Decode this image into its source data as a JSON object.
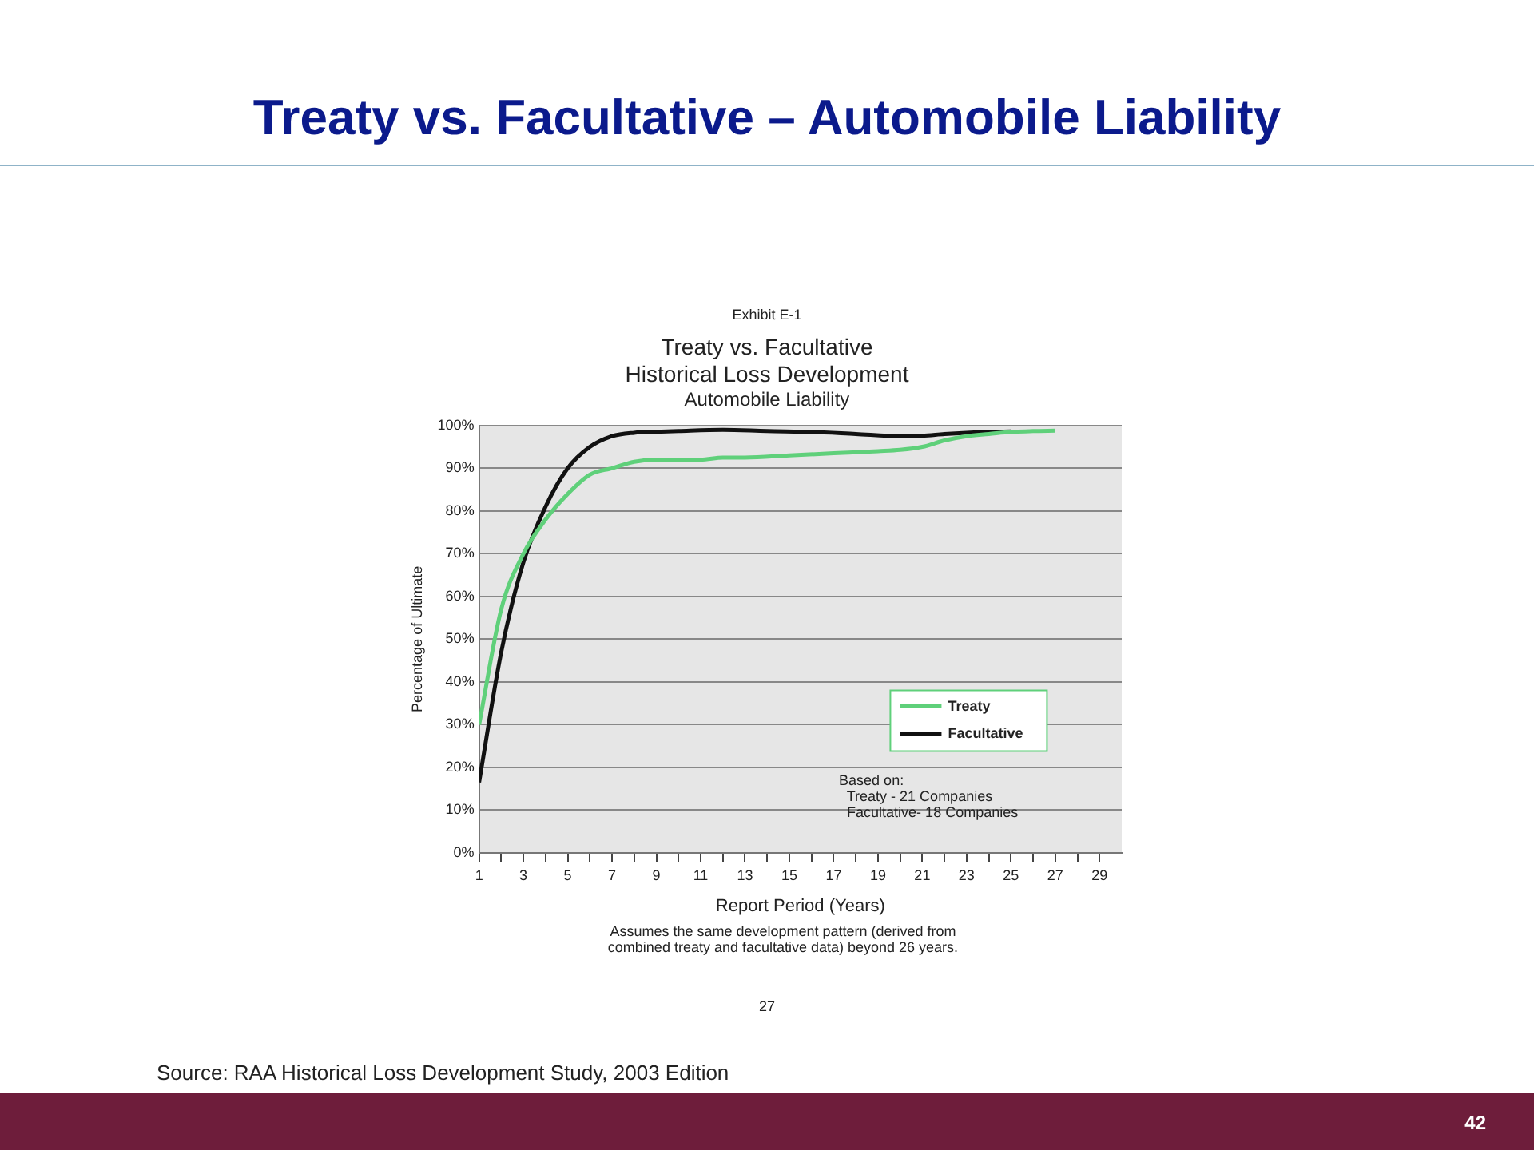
{
  "chart_data": {
    "type": "line",
    "title": "Treaty vs. Facultative – Automobile Liability",
    "subtitle": "Treaty vs. Facultative\nHistorical Loss Development\nAutomobile Liability",
    "xlabel": "Report Period (Years)",
    "ylabel": "Percentage of Ultimate",
    "series": [
      {
        "name": "Treaty",
        "color": "#5fd07a",
        "x": [
          1,
          2,
          3,
          4,
          5,
          6,
          7,
          8,
          9,
          10,
          11,
          12,
          13,
          15,
          17,
          19,
          20,
          21,
          22,
          23,
          24,
          25,
          26,
          27
        ],
        "values": [
          30,
          57,
          70,
          78,
          84,
          88.5,
          90,
          91.5,
          92,
          92,
          92,
          92.5,
          92.5,
          93,
          93.5,
          94,
          94.3,
          95,
          96.5,
          97.5,
          98,
          98.5,
          98.7,
          98.8
        ]
      },
      {
        "name": "Facultative",
        "color": "#111111",
        "x": [
          1,
          2,
          3,
          4,
          5,
          6,
          7,
          8,
          9,
          10,
          12,
          14,
          16,
          18,
          20,
          21,
          22,
          23,
          24,
          25
        ],
        "values": [
          16.5,
          47,
          68,
          81,
          90,
          95,
          97.5,
          98.3,
          98.5,
          98.7,
          99,
          98.7,
          98.5,
          98,
          97.5,
          97.6,
          98,
          98.3,
          98.5,
          98.6
        ]
      }
    ],
    "xlim": [
      1,
      30
    ],
    "xticks": [
      1,
      {
        "value": 2,
        "label": null
      },
      3,
      {
        "value": 4,
        "label": null
      },
      5,
      {
        "value": 6,
        "label": null
      },
      7,
      {
        "value": 8,
        "label": null
      },
      9,
      {
        "value": 10,
        "label": null
      },
      11,
      {
        "value": 12,
        "label": null
      },
      13,
      {
        "value": 14,
        "label": null
      },
      15,
      {
        "value": 16,
        "label": null
      },
      17,
      {
        "value": 18,
        "label": null
      },
      19,
      {
        "value": 20,
        "label": null
      },
      21,
      {
        "value": 22,
        "label": null
      },
      23,
      {
        "value": 24,
        "label": null
      },
      25,
      {
        "value": 26,
        "label": null
      },
      27,
      {
        "value": 28,
        "label": null
      },
      29
    ],
    "ylim": [
      0,
      100
    ],
    "yticks": [
      {
        "value": 0,
        "label": "0%"
      },
      {
        "value": 10,
        "label": "10%"
      },
      {
        "value": 20,
        "label": "20%"
      },
      {
        "value": 30,
        "label": "30%"
      },
      {
        "value": 40,
        "label": "40%"
      },
      {
        "value": 50,
        "label": "50%"
      },
      {
        "value": 60,
        "label": "60%"
      },
      {
        "value": 70,
        "label": "70%"
      },
      {
        "value": 80,
        "label": "80%"
      },
      {
        "value": 90,
        "label": "90%"
      },
      {
        "value": 100,
        "label": "100%"
      }
    ],
    "grid": "y",
    "legend": "right",
    "marker": "none",
    "line_style": "solid",
    "annotations": [
      "Exhibit E-1",
      "Based on:\n  Treaty - 21 Companies\n  Facultative- 18 Companies",
      "Assumes the same development pattern (derived from\ncombined treaty and facultative data) beyond 26 years.",
      "27",
      "Source: RAA Historical Loss Development Study, 2003 Edition",
      "42"
    ]
  }
}
